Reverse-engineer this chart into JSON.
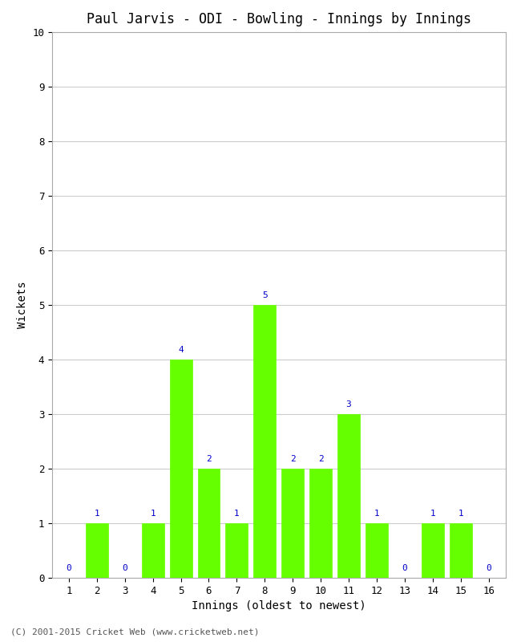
{
  "title": "Paul Jarvis - ODI - Bowling - Innings by Innings",
  "xlabel": "Innings (oldest to newest)",
  "ylabel": "Wickets",
  "innings": [
    1,
    2,
    3,
    4,
    5,
    6,
    7,
    8,
    9,
    10,
    11,
    12,
    13,
    14,
    15,
    16
  ],
  "wickets": [
    0,
    1,
    0,
    1,
    4,
    2,
    1,
    5,
    2,
    2,
    3,
    1,
    0,
    1,
    1,
    0
  ],
  "bar_color": "#66ff00",
  "bar_edge_color": "#66ff00",
  "label_color": "#0000cc",
  "ylim": [
    0,
    10
  ],
  "yticks": [
    0,
    1,
    2,
    3,
    4,
    5,
    6,
    7,
    8,
    9,
    10
  ],
  "xticks": [
    1,
    2,
    3,
    4,
    5,
    6,
    7,
    8,
    9,
    10,
    11,
    12,
    13,
    14,
    15,
    16
  ],
  "background_color": "#ffffff",
  "grid_color": "#cccccc",
  "title_fontsize": 12,
  "axis_label_fontsize": 10,
  "tick_fontsize": 9,
  "label_fontsize": 8,
  "footer": "(C) 2001-2015 Cricket Web (www.cricketweb.net)",
  "footer_color": "#555555",
  "footer_fontsize": 8
}
